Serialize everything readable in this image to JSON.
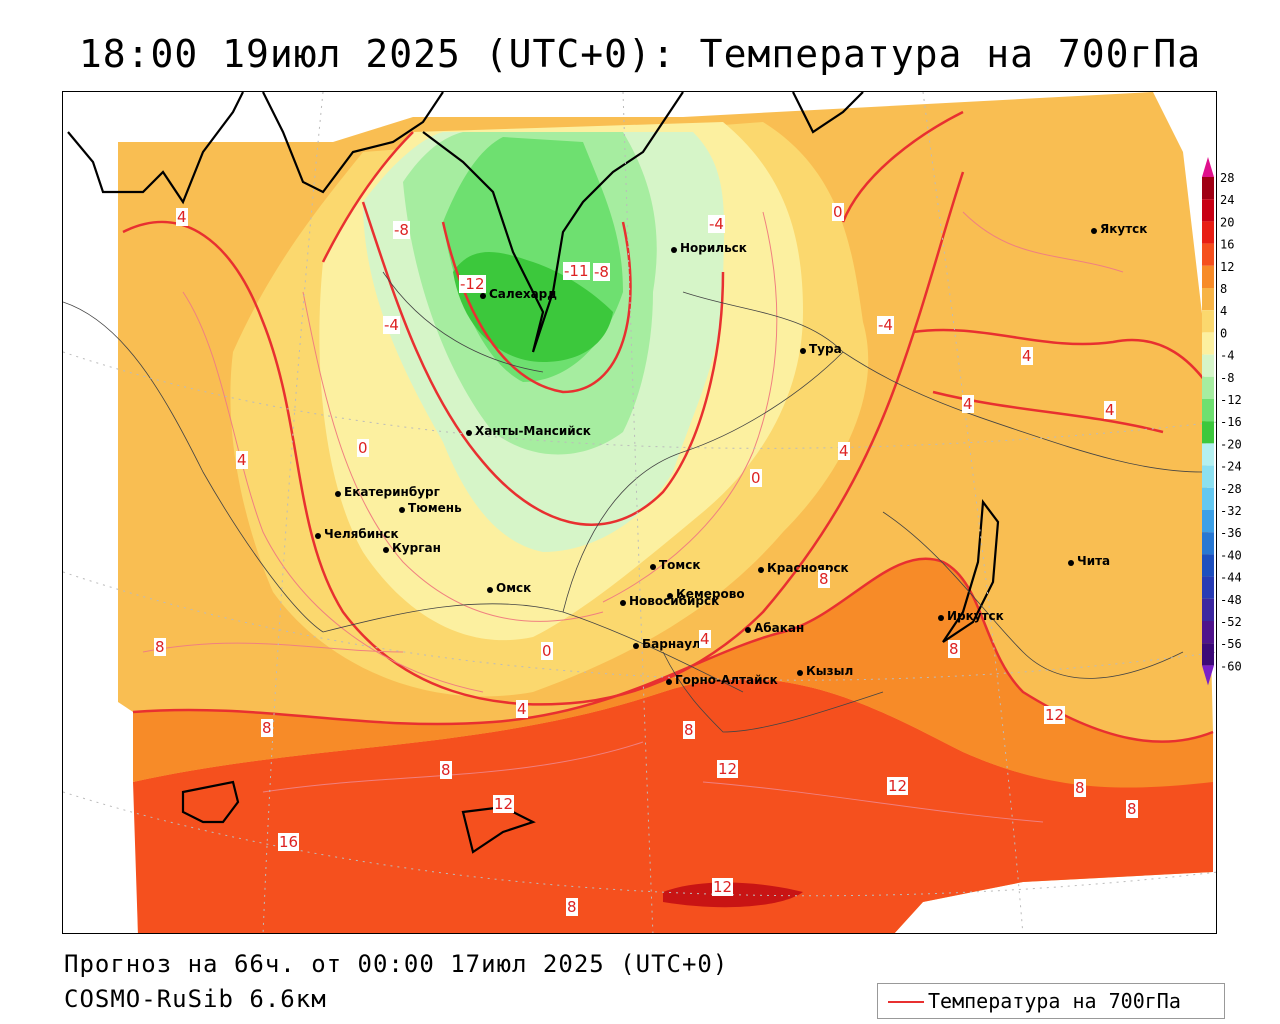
{
  "title": "18:00 19июл 2025 (UTC+0): Температура на 700гПа",
  "forecast_line": "Прогноз на 66ч. от 00:00 17июл 2025 (UTC+0)",
  "model_line": "COSMO-RuSib 6.6км",
  "legend": {
    "label": "Температура на 700гПа",
    "line_color": "#e83030"
  },
  "colorbar": {
    "labels": [
      "28",
      "24",
      "20",
      "16",
      "12",
      "8",
      "4",
      "0",
      "-4",
      "-8",
      "-12",
      "-16",
      "-20",
      "-24",
      "-28",
      "-32",
      "-36",
      "-40",
      "-44",
      "-48",
      "-52",
      "-56",
      "-60"
    ],
    "colors": [
      "#a00014",
      "#c80014",
      "#e81e14",
      "#f5501e",
      "#f78b28",
      "#f7b446",
      "#fbd86e",
      "#fcf0a0",
      "#d6f5c8",
      "#a6eda0",
      "#6ee070",
      "#3cc83c",
      "#b4f0f0",
      "#8ce0f0",
      "#64c8f0",
      "#3ca0e6",
      "#2878d2",
      "#1e50be",
      "#283cb4",
      "#3c28a0",
      "#50148c",
      "#3c0a78"
    ]
  },
  "cities": [
    {
      "name": "Якутск"
    },
    {
      "name": "Норильск"
    },
    {
      "name": "Салехард"
    },
    {
      "name": "Тура"
    },
    {
      "name": "Ханты-Мансийск"
    },
    {
      "name": "Екатеринбург"
    },
    {
      "name": "Тюмень"
    },
    {
      "name": "Челябинск"
    },
    {
      "name": "Курган"
    },
    {
      "name": "Омск"
    },
    {
      "name": "Новосибирск"
    },
    {
      "name": "Томск"
    },
    {
      "name": "Красноярск"
    },
    {
      "name": "Кемерово"
    },
    {
      "name": "Абакан"
    },
    {
      "name": "Барнаул"
    },
    {
      "name": "Горно-Алтайск"
    },
    {
      "name": "Кызыл"
    },
    {
      "name": "Иркутск"
    },
    {
      "name": "Чита"
    }
  ],
  "contour_labels": [
    "4",
    "-8",
    "-4",
    "-12",
    "-11",
    "-8",
    "-4",
    "0",
    "-4",
    "0",
    "4",
    "4",
    "4",
    "4",
    "0",
    "4",
    "8",
    "8",
    "8",
    "4",
    "0",
    "4",
    "8",
    "8",
    "12",
    "12",
    "12",
    "8",
    "8",
    "12",
    "16",
    "12",
    "8",
    "8"
  ]
}
